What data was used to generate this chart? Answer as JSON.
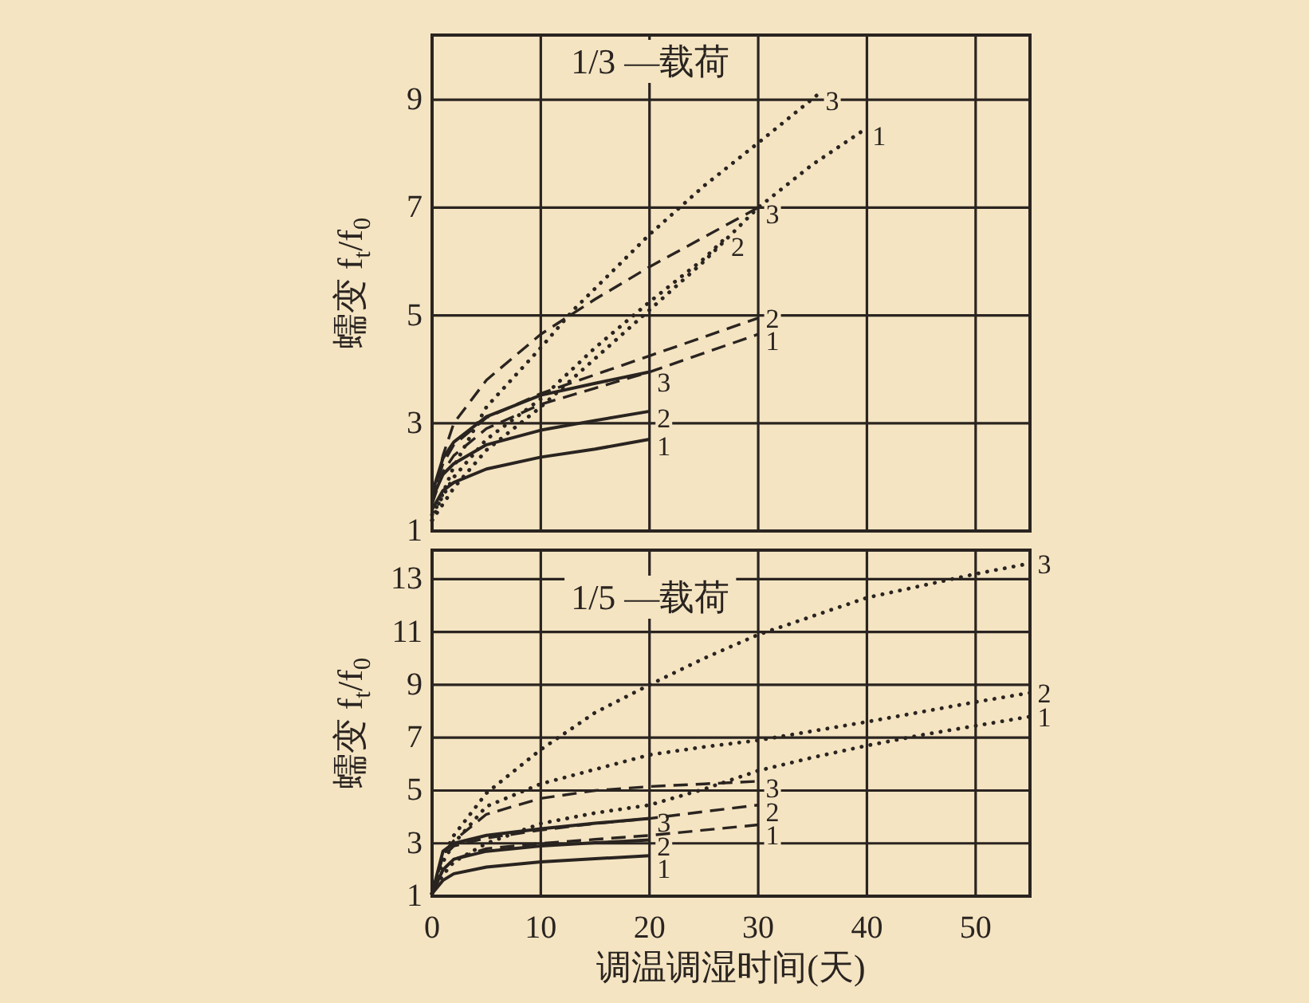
{
  "chart_data": [
    {
      "type": "line",
      "title": "1/3 —载荷",
      "ylabel": "蠕变 f$_{t}$/f$_{0}$",
      "xlim": [
        0,
        55
      ],
      "ylim": [
        1,
        10.2
      ],
      "xticks": [
        0,
        10,
        20,
        30,
        40,
        50
      ],
      "yticks": [
        1,
        3,
        5,
        7,
        9
      ],
      "tick_labels": "y",
      "grid": true,
      "series": [
        {
          "name": "1",
          "line_style": "solid",
          "color": "#2a2420",
          "x": [
            0,
            1,
            2,
            5,
            10,
            15,
            20
          ],
          "values": [
            1.4,
            1.75,
            1.9,
            2.15,
            2.37,
            2.52,
            2.7
          ]
        },
        {
          "name": "2",
          "line_style": "solid",
          "color": "#2a2420",
          "x": [
            0,
            1,
            2,
            5,
            10,
            15,
            20
          ],
          "values": [
            1.6,
            2.05,
            2.25,
            2.6,
            2.87,
            3.05,
            3.22
          ]
        },
        {
          "name": "3",
          "line_style": "solid",
          "color": "#2a2420",
          "x": [
            0,
            1,
            2,
            5,
            10,
            15,
            20
          ],
          "values": [
            1.7,
            2.35,
            2.65,
            3.12,
            3.52,
            3.74,
            3.95
          ]
        },
        {
          "name": "1",
          "line_style": "dashed",
          "color": "#2a2420",
          "x": [
            0,
            1,
            2,
            5,
            10,
            15,
            20,
            25,
            30
          ],
          "values": [
            1.5,
            2.1,
            2.4,
            2.9,
            3.35,
            3.65,
            3.95,
            4.3,
            4.65
          ]
        },
        {
          "name": "2",
          "line_style": "dashed",
          "color": "#2a2420",
          "x": [
            0,
            1,
            2,
            5,
            10,
            15,
            20,
            25,
            30
          ],
          "values": [
            1.6,
            2.25,
            2.6,
            3.1,
            3.55,
            3.9,
            4.25,
            4.6,
            4.95
          ]
        },
        {
          "name": "3",
          "line_style": "dashed",
          "color": "#2a2420",
          "x": [
            0,
            1,
            2,
            5,
            10,
            15,
            20,
            25,
            30
          ],
          "values": [
            1.5,
            2.4,
            3.0,
            3.8,
            4.65,
            5.3,
            5.9,
            6.45,
            7.0
          ]
        },
        {
          "name": "1",
          "line_style": "dotted",
          "color": "#2a2420",
          "x": [
            0,
            2,
            5,
            10,
            15,
            20,
            25,
            30,
            35,
            39.8
          ],
          "values": [
            1.2,
            1.8,
            2.5,
            3.3,
            4.2,
            5.1,
            6.0,
            7.0,
            7.8,
            8.45
          ]
        },
        {
          "name": "2",
          "line_style": "dotted",
          "color": "#2a2420",
          "x": [
            0,
            2,
            5,
            10,
            15,
            20,
            25,
            26.8
          ],
          "values": [
            1.3,
            2.0,
            2.7,
            3.45,
            4.4,
            5.25,
            6.05,
            6.4
          ]
        },
        {
          "name": "3",
          "line_style": "dotted",
          "color": "#2a2420",
          "x": [
            0,
            2,
            5,
            10,
            13,
            15,
            20,
            25,
            30,
            35.5
          ],
          "values": [
            1.2,
            2.2,
            3.3,
            4.4,
            5.1,
            5.5,
            6.5,
            7.4,
            8.2,
            9.1
          ]
        }
      ]
    },
    {
      "type": "line",
      "title": "1/5 —载荷",
      "ylabel": "蠕变 f$_{t}$/f$_{0}$",
      "xlabel": "调温调湿时间(天)",
      "xlim": [
        0,
        55
      ],
      "ylim": [
        1,
        14.1
      ],
      "xticks": [
        0,
        10,
        20,
        30,
        40,
        50
      ],
      "yticks": [
        1,
        3,
        5,
        7,
        9,
        11,
        13
      ],
      "grid": true,
      "series": [
        {
          "name": "1",
          "line_style": "solid",
          "color": "#2a2420",
          "x": [
            0,
            1,
            2,
            5,
            10,
            15,
            20
          ],
          "values": [
            1.1,
            1.6,
            1.85,
            2.1,
            2.3,
            2.42,
            2.53
          ]
        },
        {
          "name": "2",
          "line_style": "solid",
          "color": "#2a2420",
          "x": [
            0,
            1,
            2,
            5,
            10,
            15,
            20
          ],
          "values": [
            1.1,
            2.0,
            2.4,
            2.7,
            2.9,
            3.02,
            3.13
          ]
        },
        {
          "name": "3",
          "line_style": "solid",
          "color": "#2a2420",
          "x": [
            0,
            1,
            2,
            5,
            10,
            15,
            20
          ],
          "values": [
            1.1,
            2.7,
            3.0,
            3.3,
            3.55,
            3.76,
            3.94
          ]
        },
        {
          "name": "1",
          "line_style": "dashed",
          "color": "#2a2420",
          "x": [
            0,
            1,
            2,
            5,
            10,
            15,
            20,
            25,
            30
          ],
          "values": [
            1.1,
            2.0,
            2.4,
            2.8,
            3.0,
            3.15,
            3.3,
            3.5,
            3.7
          ]
        },
        {
          "name": "2",
          "line_style": "dashed",
          "color": "#2a2420",
          "x": [
            0,
            1,
            2,
            5,
            10,
            15,
            20,
            25,
            30
          ],
          "values": [
            1.1,
            2.5,
            2.9,
            3.2,
            3.5,
            3.75,
            3.94,
            4.2,
            4.45
          ]
        },
        {
          "name": "3",
          "line_style": "dashed",
          "color": "#2a2420",
          "x": [
            0,
            1,
            2,
            5,
            10,
            15,
            20,
            25,
            30
          ],
          "values": [
            1.1,
            2.6,
            3.1,
            4.1,
            4.7,
            5.0,
            5.15,
            5.25,
            5.35
          ]
        },
        {
          "name": "1",
          "line_style": "dotted",
          "color": "#2a2420",
          "x": [
            0,
            1,
            2,
            5,
            10,
            15,
            20,
            25,
            30,
            35,
            40,
            45,
            50,
            55
          ],
          "values": [
            1.1,
            1.8,
            2.3,
            3.0,
            3.75,
            4.15,
            4.45,
            5.05,
            5.75,
            6.25,
            6.7,
            7.1,
            7.45,
            7.8
          ]
        },
        {
          "name": "2",
          "line_style": "dotted",
          "color": "#2a2420",
          "x": [
            0,
            1,
            2,
            5,
            10,
            15,
            20,
            25,
            30,
            40,
            50,
            55
          ],
          "values": [
            1.1,
            2.3,
            3.0,
            4.4,
            5.25,
            5.8,
            6.35,
            6.65,
            6.9,
            7.6,
            8.35,
            8.7
          ]
        },
        {
          "name": "3",
          "line_style": "dotted",
          "color": "#2a2420",
          "x": [
            0,
            1,
            2,
            5,
            10,
            15,
            20,
            25,
            30,
            40,
            50,
            55
          ],
          "values": [
            1.1,
            2.5,
            3.3,
            4.9,
            6.55,
            7.95,
            9.0,
            10.0,
            10.9,
            12.3,
            13.2,
            13.6
          ]
        }
      ]
    }
  ]
}
